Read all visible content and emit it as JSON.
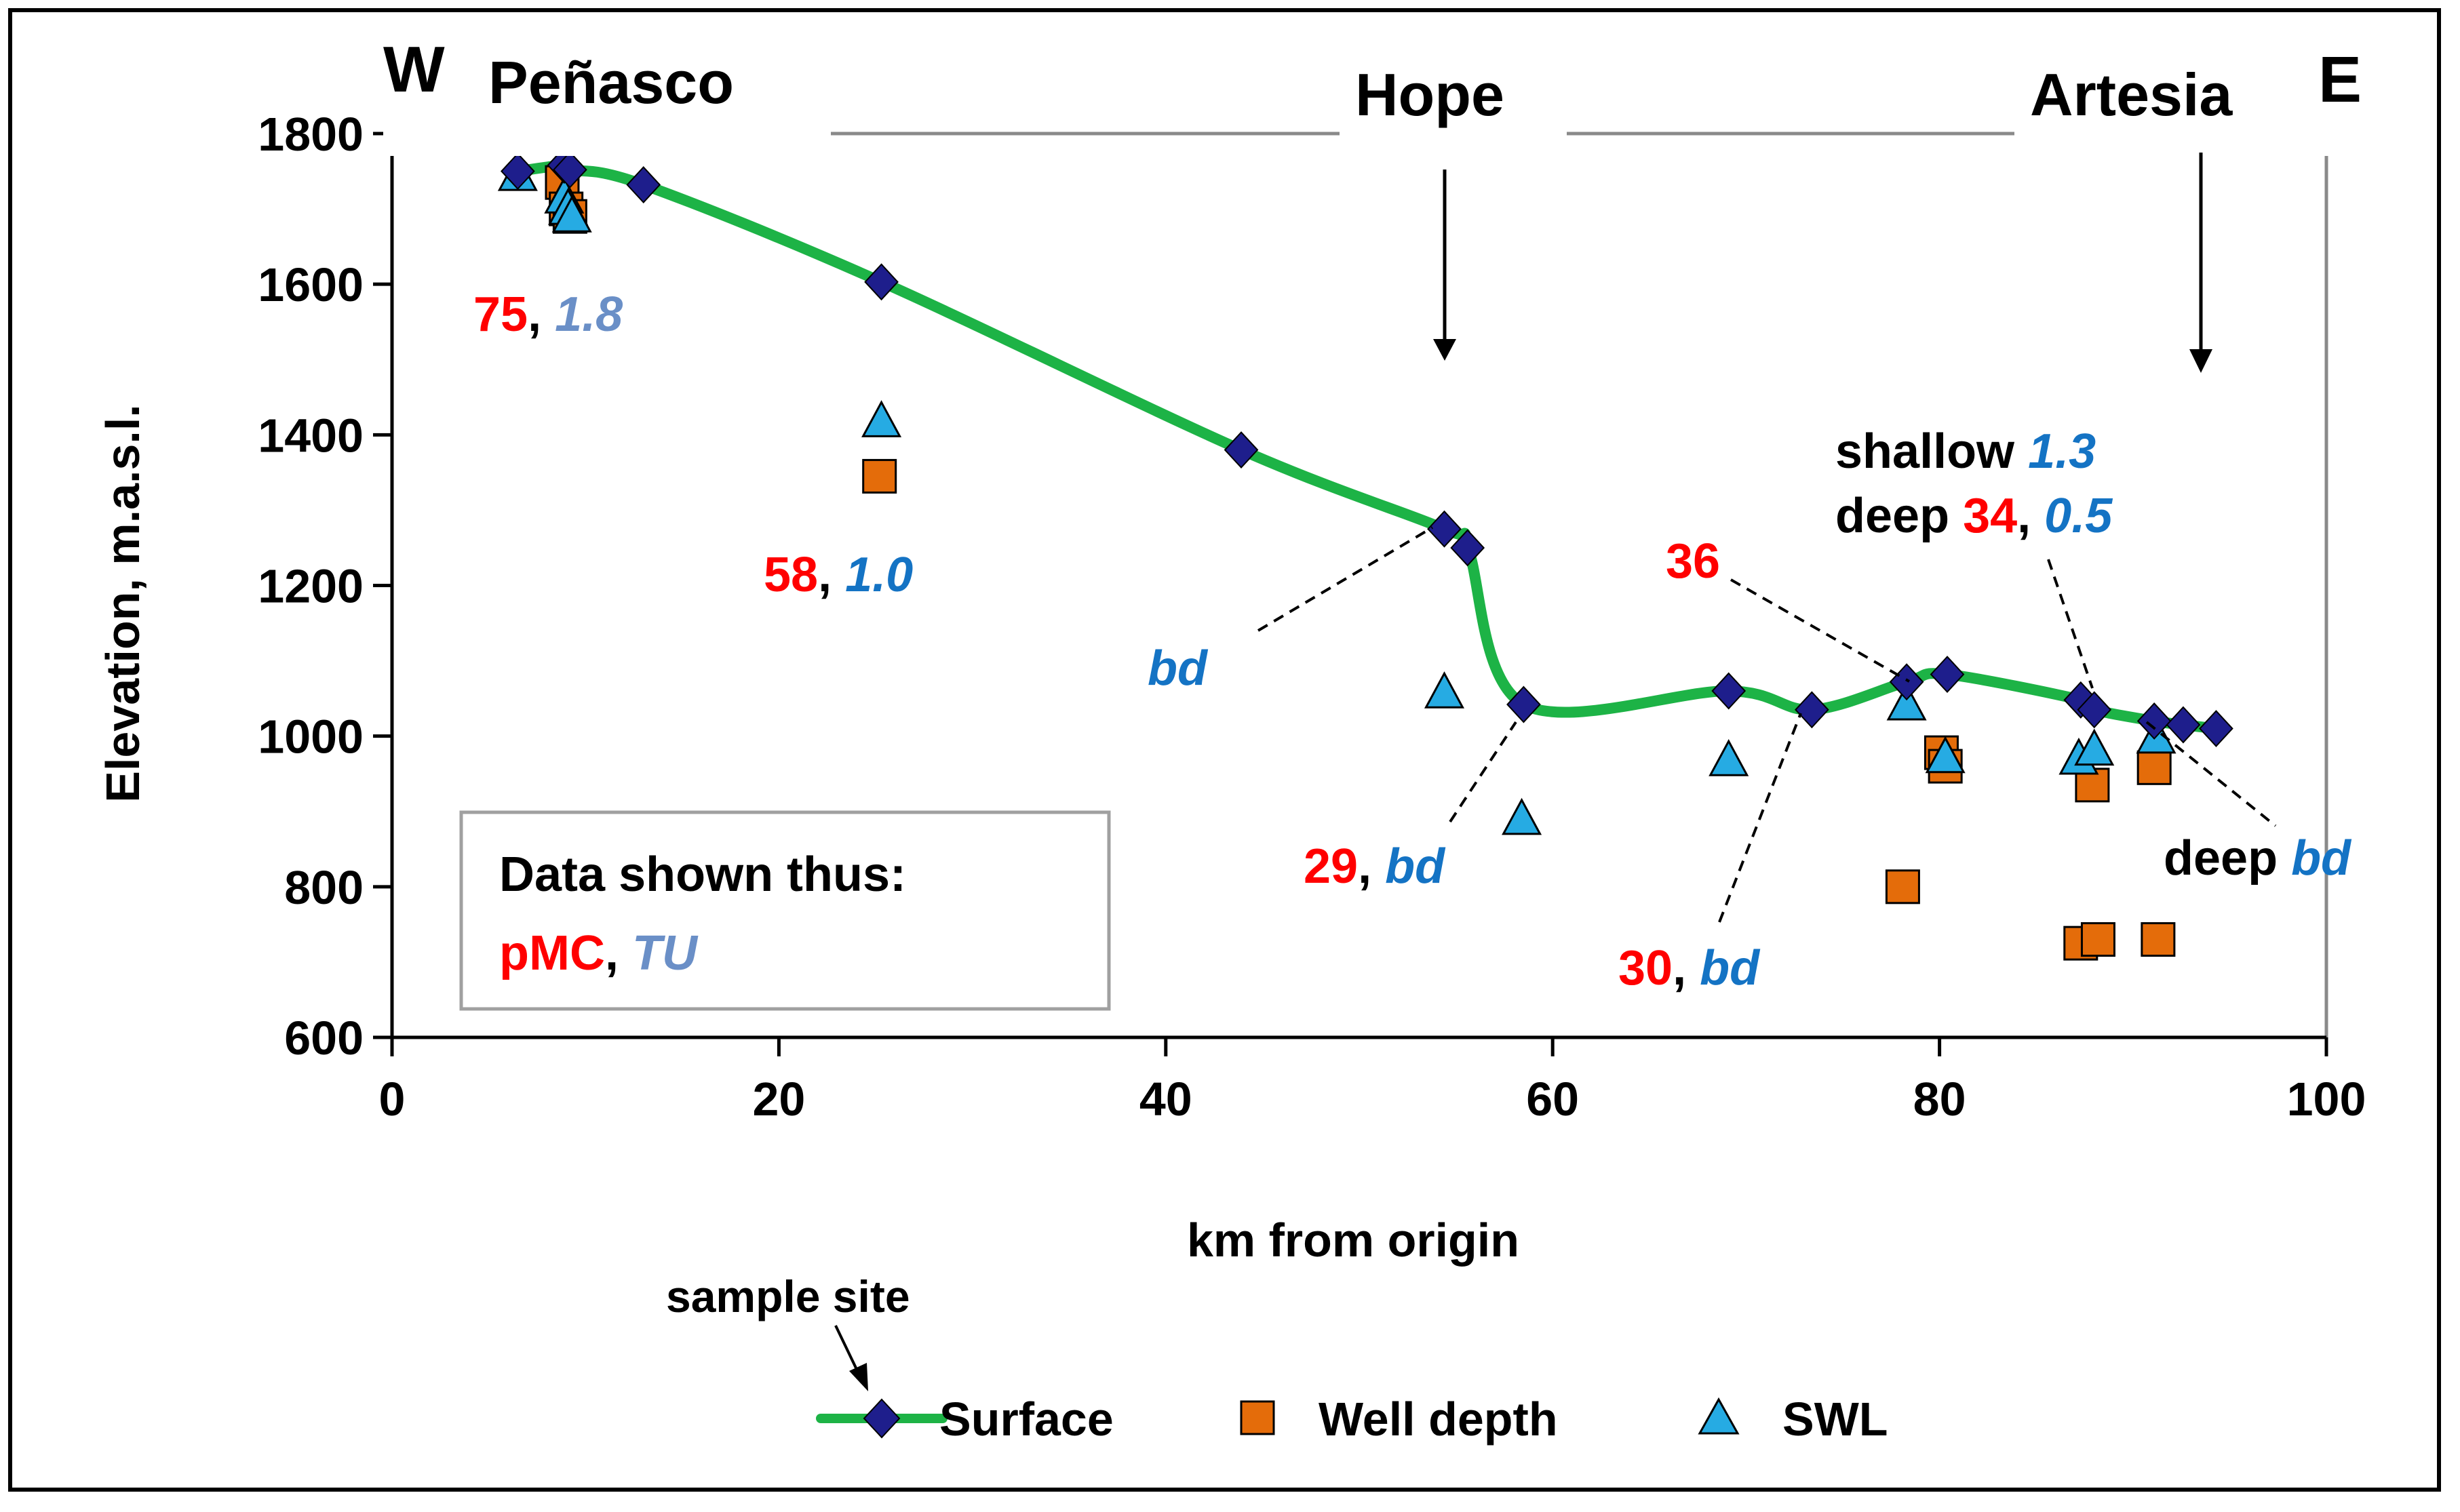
{
  "chart_data": {
    "type": "scatter",
    "title": "",
    "xlabel": "km from origin",
    "ylabel": "Elevation, m.a.s.l.",
    "xlim": [
      0,
      100
    ],
    "ylim": [
      600,
      1800
    ],
    "x_ticks": [
      "0",
      "20",
      "40",
      "60",
      "80",
      "100"
    ],
    "y_ticks": [
      "600",
      "800",
      "1000",
      "1200",
      "1400",
      "1600",
      "1800"
    ],
    "series": [
      {
        "name": "Surface",
        "marker": "diamond",
        "color": "#1e1e8c",
        "line_color": "#1db346",
        "x": [
          6.5,
          8.9,
          9.2,
          13.0,
          25.3,
          43.9,
          54.4,
          55.6,
          58.5,
          69.1,
          73.4,
          78.3,
          80.4,
          87.3,
          88.0,
          91.1,
          92.6,
          94.3
        ],
        "y": [
          1750,
          1758,
          1752,
          1732,
          1603,
          1380,
          1275,
          1250,
          1042,
          1060,
          1035,
          1072,
          1082,
          1048,
          1035,
          1020,
          1015,
          1010
        ]
      },
      {
        "name": "Well depth",
        "marker": "square",
        "color": "#e46c0a",
        "x": [
          8.8,
          9.0,
          9.2,
          25.2,
          78.1,
          80.1,
          80.3,
          87.3,
          87.9,
          88.2,
          91.1,
          91.3
        ],
        "y": [
          1735,
          1700,
          1690,
          1345,
          800,
          978,
          960,
          725,
          935,
          730,
          958,
          730
        ]
      },
      {
        "name": "SWL",
        "marker": "triangle",
        "color": "#26abe3",
        "x": [
          6.5,
          8.9,
          9.1,
          9.3,
          25.3,
          54.4,
          58.4,
          69.1,
          78.3,
          80.3,
          87.2,
          88.0,
          91.2
        ],
        "y": [
          1745,
          1715,
          1700,
          1690,
          1418,
          1058,
          890,
          968,
          1042,
          972,
          970,
          982,
          998
        ]
      }
    ],
    "annotations": {
      "west": "W",
      "east": "E",
      "town_penasco": "Peñasco",
      "town_hope": "Hope",
      "town_artesia": "Artesia",
      "site_75": {
        "pmc": "75",
        "sep": ", ",
        "tu": "1.8"
      },
      "site_58": {
        "pmc": "58",
        "sep": ", ",
        "tu": "1.0"
      },
      "site_bd_hope": {
        "tu": "bd"
      },
      "site_29": {
        "pmc": "29",
        "sep": ", ",
        "tu": "bd"
      },
      "site_30": {
        "pmc": "30",
        "sep": ", ",
        "tu": "bd"
      },
      "site_36": {
        "pmc": "36"
      },
      "site_shallow": {
        "label": "shallow ",
        "tu": "1.3"
      },
      "site_deep": {
        "label": "deep ",
        "pmc": "34",
        "sep": ", ",
        "tu": "0.5"
      },
      "site_deep_bd": {
        "label": "deep ",
        "tu": "bd"
      }
    },
    "data_box": {
      "title": "Data shown thus:",
      "pmc": "pMC",
      "sep": ", ",
      "tu": "TU"
    },
    "legend_note": "sample site",
    "legend_position": "bottom"
  }
}
